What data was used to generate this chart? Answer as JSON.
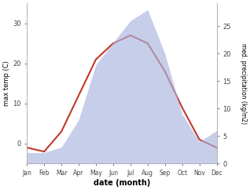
{
  "months": [
    "Jan",
    "Feb",
    "Mar",
    "Apr",
    "May",
    "Jun",
    "Jul",
    "Aug",
    "Sep",
    "Oct",
    "Nov",
    "Dec"
  ],
  "temperature": [
    -1,
    -2,
    3,
    12,
    21,
    25,
    27,
    25,
    18,
    9,
    1,
    -1
  ],
  "precipitation": [
    2,
    2,
    3,
    8,
    18,
    22,
    26,
    28,
    20,
    9,
    4,
    6
  ],
  "temp_ylim": [
    -5,
    35
  ],
  "precip_ylim": [
    0,
    29.17
  ],
  "temp_yticks": [
    0,
    10,
    20,
    30
  ],
  "precip_yticks": [
    0,
    5,
    10,
    15,
    20,
    25
  ],
  "xlabel": "date (month)",
  "ylabel_left": "max temp (C)",
  "ylabel_right": "med. precipitation (kg/m2)",
  "line_color": "#c0392b",
  "fill_color": "#aab4e0",
  "fill_alpha": 0.65,
  "background_color": "#ffffff"
}
